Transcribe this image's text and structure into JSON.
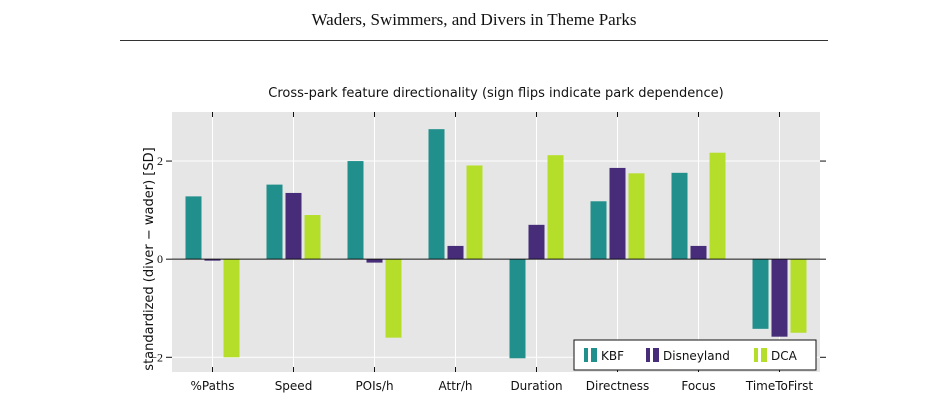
{
  "page": {
    "header_title": "Waders, Swimmers, and Divers in Theme Parks"
  },
  "chart_data": {
    "type": "bar",
    "title": "Cross-park feature directionality (sign flips indicate park dependence)",
    "xlabel": "",
    "ylabel": "standardized (diver − wader) [SD]",
    "categories": [
      "%Paths",
      "Speed",
      "POIs/h",
      "Attr/h",
      "Duration",
      "Directness",
      "Focus",
      "TimeToFirst"
    ],
    "series": [
      {
        "name": "KBF",
        "color": "#21908c",
        "values": [
          1.28,
          1.52,
          2.0,
          2.65,
          -2.02,
          1.18,
          1.76,
          -1.42
        ]
      },
      {
        "name": "Disneyland",
        "color": "#472c7a",
        "values": [
          -0.03,
          1.35,
          -0.07,
          0.27,
          0.7,
          1.86,
          0.27,
          -1.58
        ]
      },
      {
        "name": "DCA",
        "color": "#b5de2b",
        "values": [
          -2.0,
          0.9,
          -1.6,
          1.91,
          2.12,
          1.75,
          2.17,
          -1.5
        ]
      }
    ],
    "y_ticks": [
      -2,
      0,
      2
    ],
    "y_tick_labels": [
      "−2",
      "0",
      "2"
    ],
    "ylim": [
      -2.3,
      3.0
    ],
    "grid": true,
    "background": "#e6e6e6",
    "legend_position": "bottom-right"
  }
}
